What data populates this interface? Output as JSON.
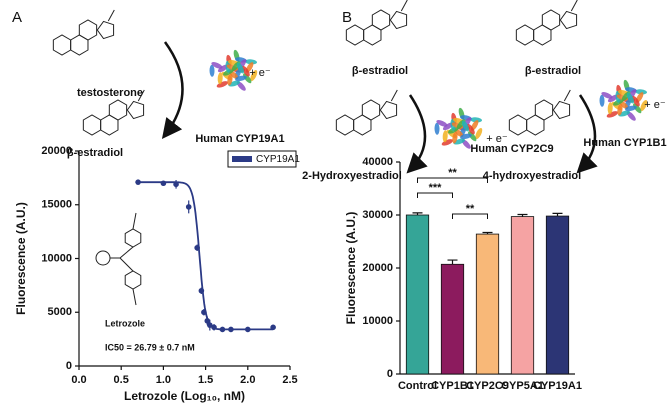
{
  "chart_data": [
    {
      "type": "scatter",
      "panel_label": "A",
      "scheme": [
        "testosterone",
        "β-estradiol",
        "Human CYP19A1",
        "+ e⁻"
      ],
      "annotations": [
        "Letrozole",
        "IC50 = 26.79 ± 0.7 nM"
      ],
      "xlabel": "Letrozole (Log₁₀, nM)",
      "ylabel": "Fluorescence (A.U.)",
      "x": [
        0.7,
        1.0,
        1.15,
        1.3,
        1.4,
        1.45,
        1.48,
        1.52,
        1.55,
        1.6,
        1.7,
        1.8,
        2.0,
        2.3
      ],
      "series": [
        {
          "name": "CYP19A1",
          "color": "#2b3a86",
          "values": [
            17100,
            17000,
            16900,
            14800,
            11000,
            7000,
            5000,
            4200,
            3800,
            3600,
            3400,
            3400,
            3400,
            3600
          ],
          "errors": [
            150,
            150,
            400,
            600,
            300,
            300,
            300,
            400,
            500,
            300,
            200,
            150,
            150,
            150
          ]
        }
      ],
      "fit": {
        "top": 17100,
        "bottom": 3400,
        "logic50": 1.428,
        "hill": 12
      },
      "xlim": [
        0,
        2.5
      ],
      "xticks": [
        {
          "value": 0,
          "label": "0.0"
        },
        {
          "value": 0.5,
          "label": "0.5"
        },
        {
          "value": 1,
          "label": "1.0"
        },
        {
          "value": 1.5,
          "label": "1.5"
        },
        {
          "value": 2,
          "label": "2.0"
        },
        {
          "value": 2.5,
          "label": "2.5"
        }
      ],
      "ylim": [
        0,
        20000
      ],
      "yticks": [
        0,
        5000,
        10000,
        15000,
        20000
      ],
      "legend": "upper right"
    },
    {
      "type": "bar",
      "panel_label": "B",
      "scheme": [
        "β-estradiol",
        "2-Hydroxyestradiol",
        "Human CYP2C9",
        "+ e⁻",
        "β-estradiol",
        "4-hydroxyestradiol",
        "Human CYP1B1",
        "+ e⁻"
      ],
      "ylabel": "Fluorescence (A.U.)",
      "categories": [
        "Control",
        "CYP1B1",
        "CYP2C9",
        "CYP5A1",
        "CYP19A1"
      ],
      "values": [
        30000,
        20700,
        26400,
        29700,
        29800
      ],
      "errors": [
        400,
        800,
        300,
        400,
        500
      ],
      "colors": [
        "#35a597",
        "#8c1b5e",
        "#f8b878",
        "#f5a3a3",
        "#2c3575"
      ],
      "significance": [
        {
          "from": 0,
          "to": 2,
          "label": "**"
        },
        {
          "from": 0,
          "to": 1,
          "label": "***"
        },
        {
          "from": 1,
          "to": 2,
          "label": "**"
        }
      ],
      "ylim": [
        0,
        40000
      ],
      "yticks": [
        0,
        10000,
        20000,
        30000,
        40000
      ]
    }
  ]
}
